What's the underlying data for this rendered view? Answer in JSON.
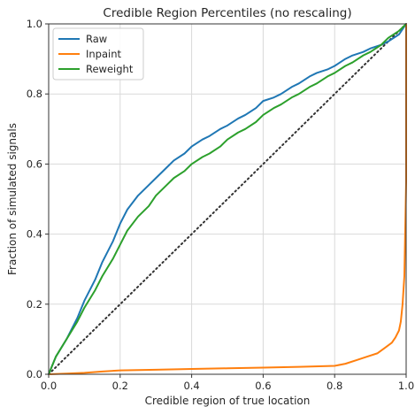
{
  "chart_data": {
    "type": "line",
    "title": "Credible Region Percentiles (no rescaling)",
    "xlabel": "Credible region of true location",
    "ylabel": "Fraction of simulated signals",
    "xlim": [
      0.0,
      1.0
    ],
    "ylim": [
      0.0,
      1.0
    ],
    "x_ticks": [
      "0.0",
      "0.2",
      "0.4",
      "0.6",
      "0.8",
      "1.0"
    ],
    "y_ticks": [
      "0.0",
      "0.2",
      "0.4",
      "0.6",
      "0.8",
      "1.0"
    ],
    "grid": true,
    "legend_position": "top-left",
    "reference_line": {
      "style": "dotted",
      "color": "#333333",
      "x": [
        0,
        1
      ],
      "y": [
        0,
        1
      ]
    },
    "series": [
      {
        "name": "Raw",
        "color": "#1f77b4",
        "x": [
          0,
          0.02,
          0.05,
          0.08,
          0.1,
          0.13,
          0.15,
          0.18,
          0.2,
          0.22,
          0.25,
          0.28,
          0.3,
          0.33,
          0.35,
          0.38,
          0.4,
          0.43,
          0.45,
          0.48,
          0.5,
          0.53,
          0.55,
          0.58,
          0.6,
          0.63,
          0.65,
          0.68,
          0.7,
          0.73,
          0.75,
          0.78,
          0.8,
          0.83,
          0.85,
          0.88,
          0.9,
          0.93,
          0.95,
          0.98,
          1.0
        ],
        "y": [
          0,
          0.05,
          0.1,
          0.16,
          0.21,
          0.27,
          0.32,
          0.38,
          0.43,
          0.47,
          0.51,
          0.54,
          0.56,
          0.59,
          0.61,
          0.63,
          0.65,
          0.67,
          0.68,
          0.7,
          0.71,
          0.73,
          0.74,
          0.76,
          0.78,
          0.79,
          0.8,
          0.82,
          0.83,
          0.85,
          0.86,
          0.87,
          0.88,
          0.9,
          0.91,
          0.92,
          0.93,
          0.94,
          0.95,
          0.97,
          1.0
        ]
      },
      {
        "name": "Inpaint",
        "color": "#ff7f0e",
        "x": [
          0,
          0.05,
          0.1,
          0.15,
          0.2,
          0.25,
          0.3,
          0.4,
          0.5,
          0.6,
          0.7,
          0.8,
          0.83,
          0.86,
          0.89,
          0.92,
          0.94,
          0.96,
          0.97,
          0.98,
          0.985,
          0.99,
          0.995,
          1.0,
          1.0
        ],
        "y": [
          0,
          0.002,
          0.004,
          0.008,
          0.011,
          0.012,
          0.013,
          0.015,
          0.017,
          0.019,
          0.021,
          0.024,
          0.03,
          0.04,
          0.05,
          0.06,
          0.075,
          0.09,
          0.105,
          0.125,
          0.15,
          0.2,
          0.28,
          0.55,
          1.0
        ]
      },
      {
        "name": "Reweight",
        "color": "#2ca02c",
        "x": [
          0,
          0.02,
          0.05,
          0.08,
          0.1,
          0.13,
          0.15,
          0.18,
          0.2,
          0.22,
          0.25,
          0.28,
          0.3,
          0.33,
          0.35,
          0.38,
          0.4,
          0.43,
          0.45,
          0.48,
          0.5,
          0.53,
          0.55,
          0.58,
          0.6,
          0.63,
          0.65,
          0.68,
          0.7,
          0.73,
          0.75,
          0.78,
          0.8,
          0.83,
          0.85,
          0.88,
          0.9,
          0.93,
          0.95,
          0.98,
          1.0
        ],
        "y": [
          0,
          0.05,
          0.1,
          0.15,
          0.19,
          0.24,
          0.28,
          0.33,
          0.37,
          0.41,
          0.45,
          0.48,
          0.51,
          0.54,
          0.56,
          0.58,
          0.6,
          0.62,
          0.63,
          0.65,
          0.67,
          0.69,
          0.7,
          0.72,
          0.74,
          0.76,
          0.77,
          0.79,
          0.8,
          0.82,
          0.83,
          0.85,
          0.86,
          0.88,
          0.89,
          0.91,
          0.92,
          0.94,
          0.96,
          0.98,
          1.0
        ]
      }
    ]
  }
}
